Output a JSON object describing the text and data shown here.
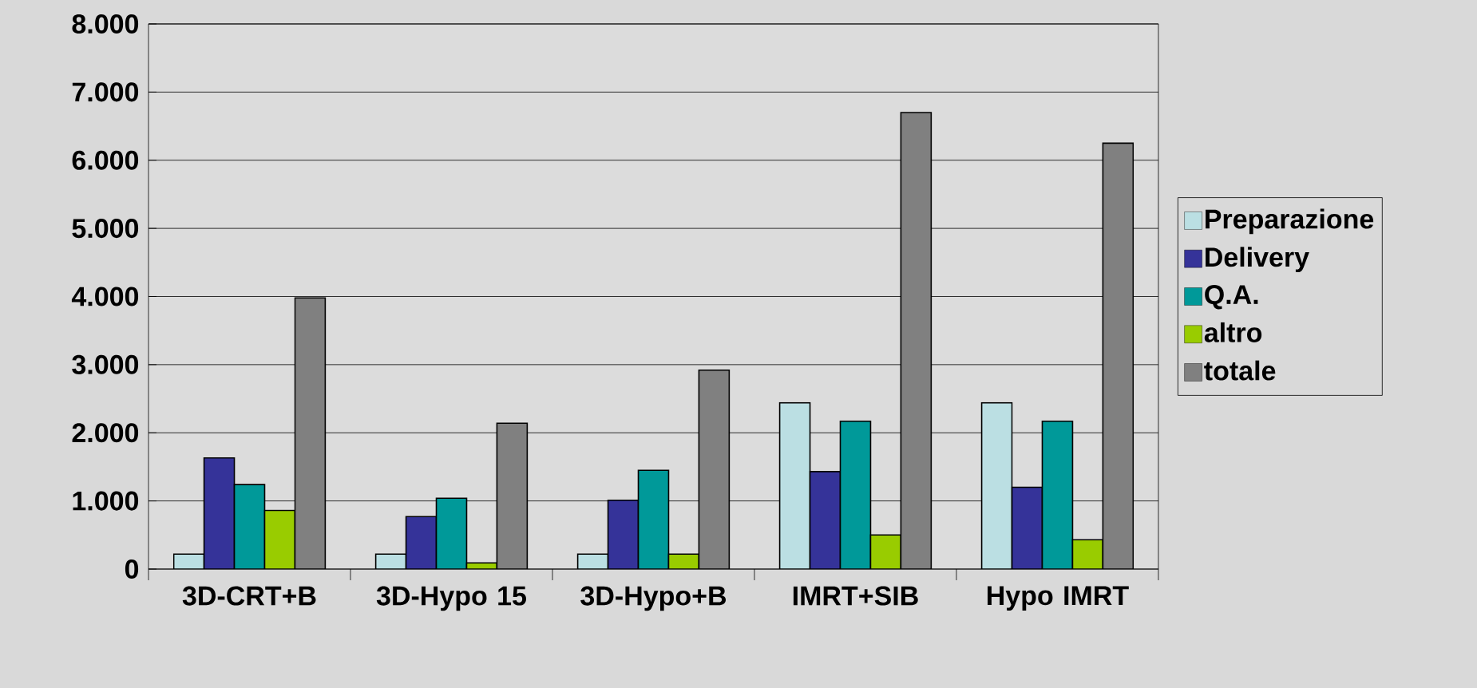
{
  "chart_data": {
    "type": "bar",
    "categories": [
      "3D-CRT+B",
      "3D-Hypo 15",
      "3D-Hypo+B",
      "IMRT+SIB",
      "Hypo IMRT"
    ],
    "series": [
      {
        "name": "Preparazione",
        "color": "#bbdfe3",
        "values": [
          220,
          220,
          220,
          2440,
          2440
        ]
      },
      {
        "name": "Delivery",
        "color": "#353399",
        "values": [
          1630,
          770,
          1010,
          1430,
          1200
        ]
      },
      {
        "name": "Q.A.",
        "color": "#009999",
        "values": [
          1240,
          1040,
          1450,
          2170,
          2170
        ]
      },
      {
        "name": "altro",
        "color": "#99cc00",
        "values": [
          860,
          90,
          220,
          500,
          430
        ]
      },
      {
        "name": "totale",
        "color": "#808080",
        "values": [
          3980,
          2140,
          2920,
          6700,
          6250
        ]
      }
    ],
    "ylim": [
      0,
      8000
    ],
    "yticks": [
      0,
      {
        "value": 1000,
        "label": "1.000"
      },
      {
        "value": 2000,
        "label": "2.000"
      },
      {
        "value": 3000,
        "label": "3.000"
      },
      {
        "value": 4000,
        "label": "4.000"
      },
      {
        "value": 5000,
        "label": "5.000"
      },
      {
        "value": 6000,
        "label": "6.000"
      },
      {
        "value": 7000,
        "label": "7.000"
      },
      {
        "value": 8000,
        "label": "8.000"
      }
    ],
    "grid": "y",
    "legend": "right"
  }
}
